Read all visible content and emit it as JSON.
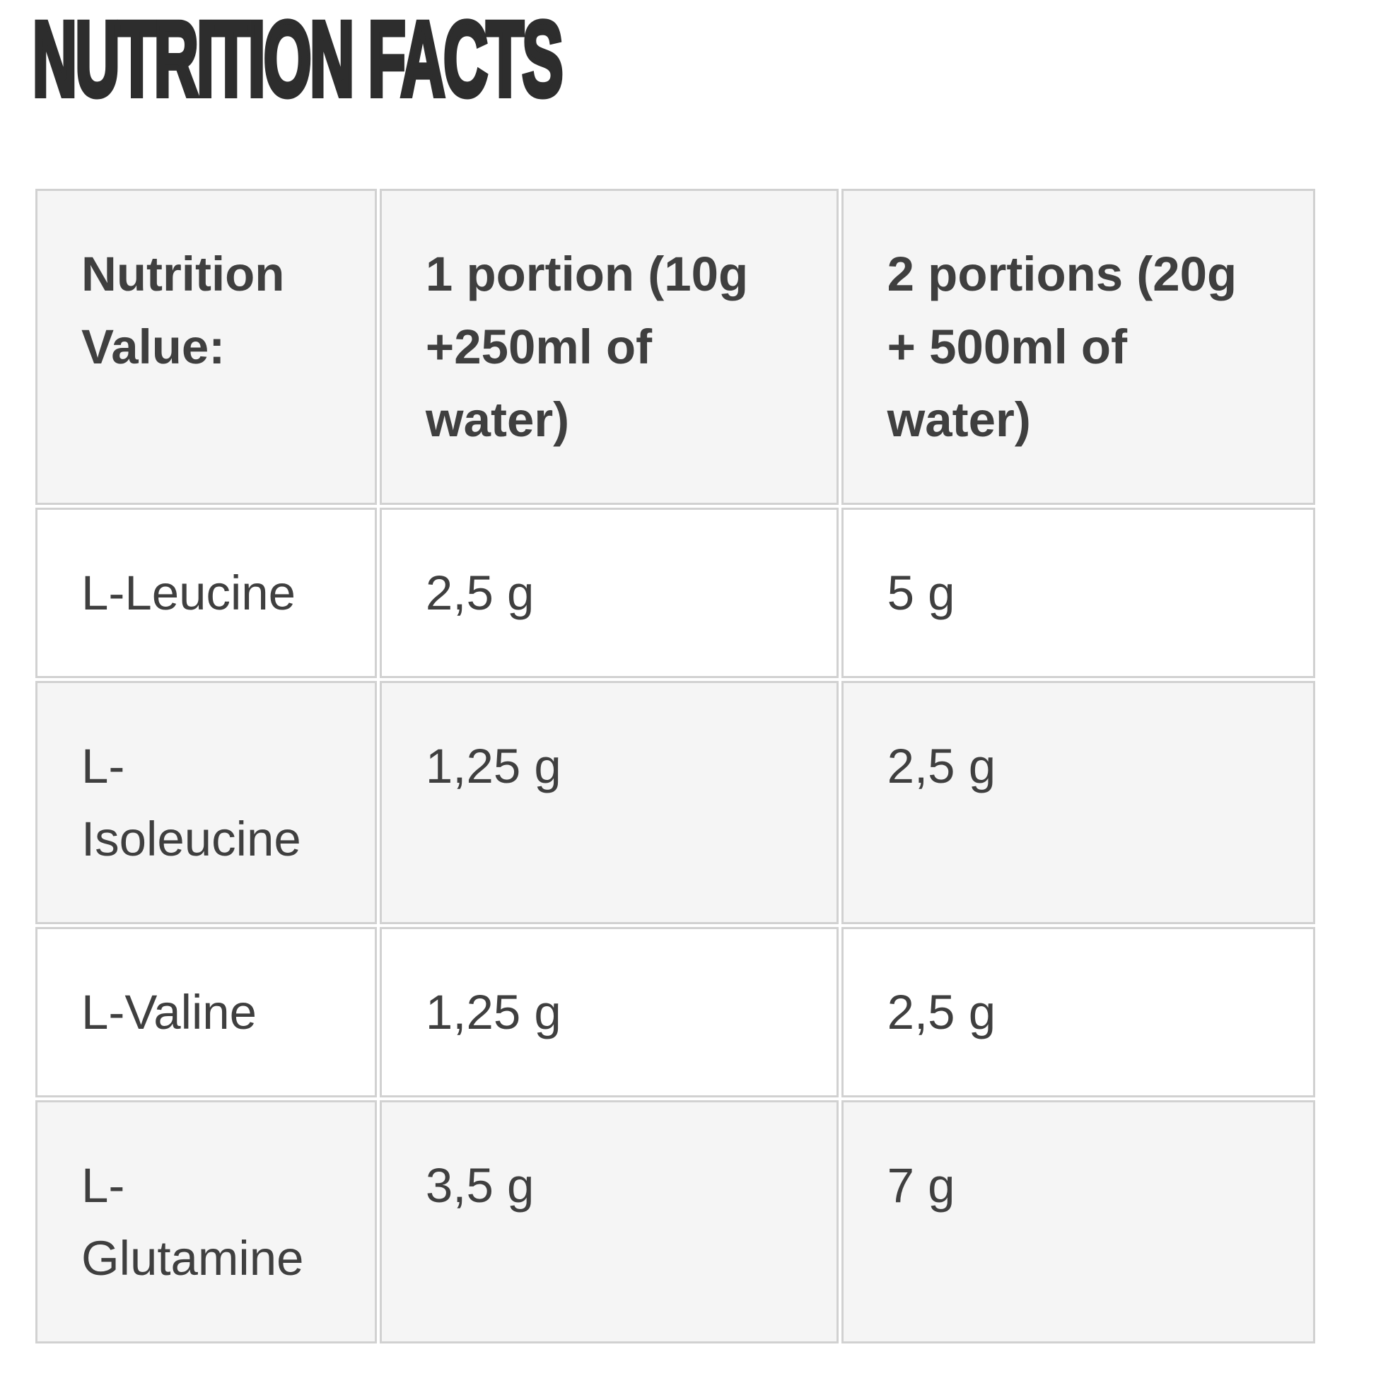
{
  "page": {
    "title": "NUTRITION FACTS"
  },
  "nutrition_table": {
    "columns": [
      "Nutrition\nValue:",
      "1 portion (10g\n+250ml of\nwater)",
      "2 portions (20g\n+ 500ml of\nwater)"
    ],
    "rows": [
      {
        "label": "L-Leucine",
        "portion_1": "2,5 g",
        "portion_2": "5 g"
      },
      {
        "label": "L-\nIsoleucine",
        "portion_1": "1,25 g",
        "portion_2": "2,5 g"
      },
      {
        "label": "L-Valine",
        "portion_1": "1,25 g",
        "portion_2": "2,5 g"
      },
      {
        "label": "L-\nGlutamine",
        "portion_1": "3,5 g",
        "portion_2": "7 g"
      }
    ]
  },
  "theme": {
    "title-color": "#2d2d2d",
    "text-color": "#3f3f3f",
    "border-color": "#d1d1d1",
    "stripe-bg": "#f5f5f5",
    "row-bg": "#ffffff",
    "page-bg": "#ffffff"
  }
}
